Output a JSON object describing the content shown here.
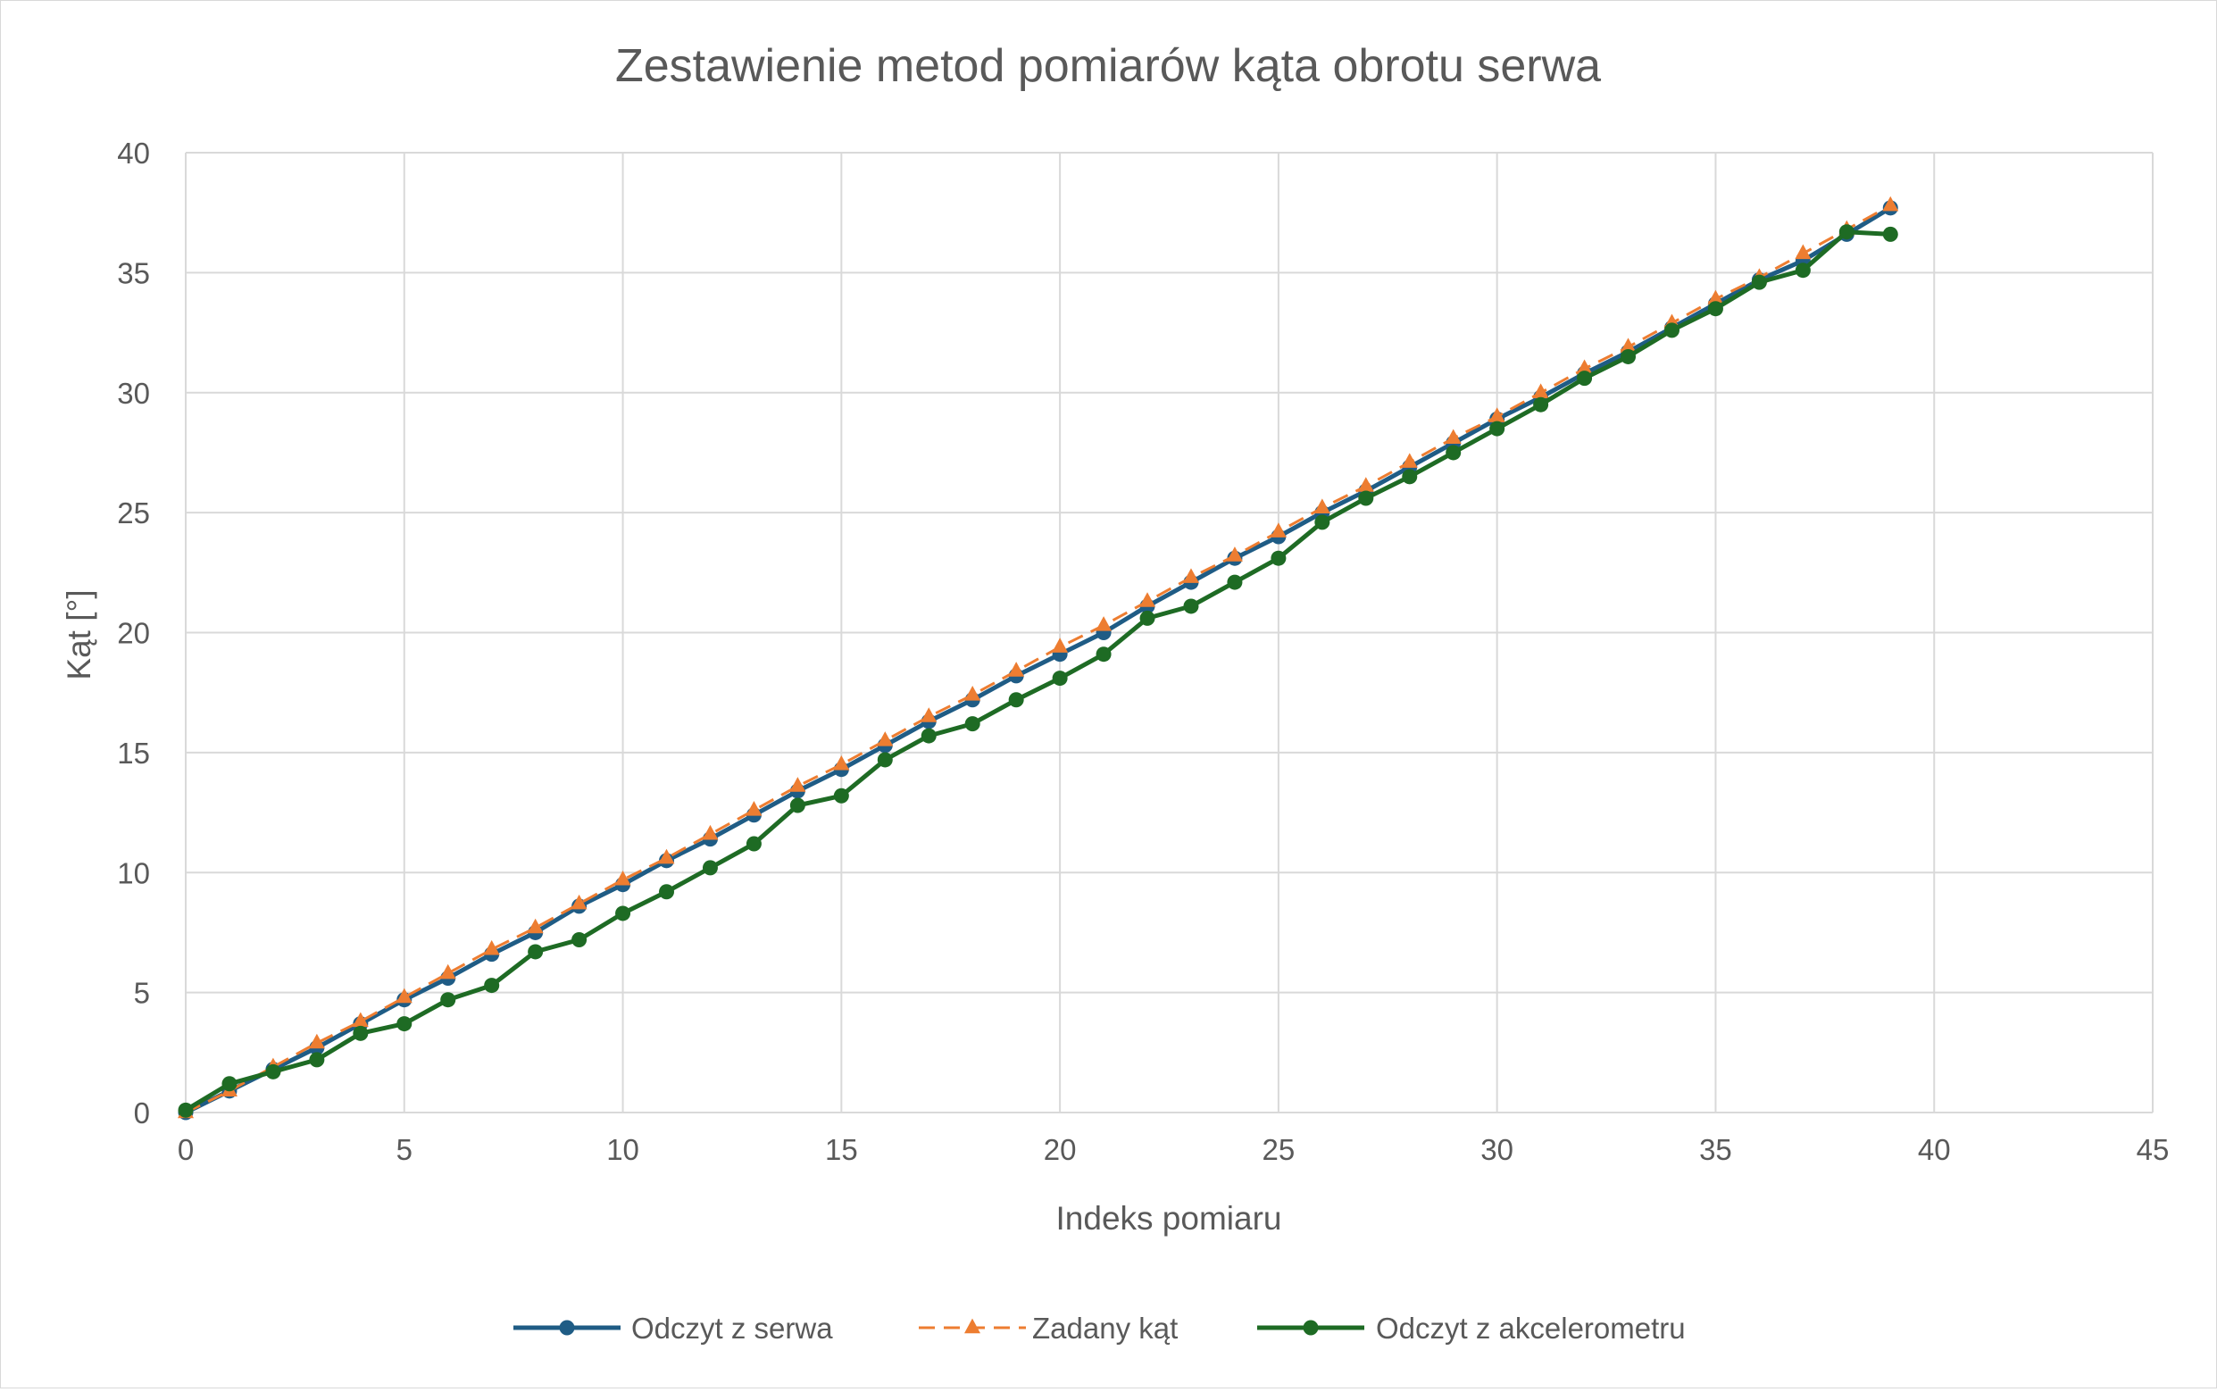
{
  "chart_data": {
    "type": "line",
    "title": "Zestawienie metod pomiarów kąta obrotu serwa",
    "xlabel": "Indeks pomiaru",
    "ylabel": "Kąt [°]",
    "xlim": [
      0,
      45
    ],
    "ylim": [
      0,
      40
    ],
    "xticks": [
      0,
      5,
      10,
      15,
      20,
      25,
      30,
      35,
      40,
      45
    ],
    "yticks": [
      0,
      5,
      10,
      15,
      20,
      25,
      30,
      35,
      40
    ],
    "grid": true,
    "legend_position": "bottom",
    "series": [
      {
        "name": "Odczyt z serwa",
        "color": "#1f5c85",
        "marker": "circle",
        "dash": "solid",
        "x": [
          0,
          1,
          2,
          3,
          4,
          5,
          6,
          7,
          8,
          9,
          10,
          11,
          12,
          13,
          14,
          15,
          16,
          17,
          18,
          19,
          20,
          21,
          22,
          23,
          24,
          25,
          26,
          27,
          28,
          29,
          30,
          31,
          32,
          33,
          34,
          35,
          36,
          37,
          38,
          39
        ],
        "y": [
          0,
          0.9,
          1.8,
          2.7,
          3.7,
          4.7,
          5.6,
          6.6,
          7.5,
          8.6,
          9.5,
          10.5,
          11.4,
          12.4,
          13.4,
          14.3,
          15.3,
          16.3,
          17.2,
          18.2,
          19.1,
          20.0,
          21.1,
          22.1,
          23.1,
          24.0,
          25.0,
          25.9,
          26.9,
          27.9,
          28.9,
          29.8,
          30.8,
          31.7,
          32.7,
          33.7,
          34.7,
          35.5,
          36.6,
          37.7
        ]
      },
      {
        "name": "Zadany kąt",
        "color": "#ed7d31",
        "marker": "triangle",
        "dash": "dashed",
        "x": [
          0,
          1,
          2,
          3,
          4,
          5,
          6,
          7,
          8,
          9,
          10,
          11,
          12,
          13,
          14,
          15,
          16,
          17,
          18,
          19,
          20,
          21,
          22,
          23,
          24,
          25,
          26,
          27,
          28,
          29,
          30,
          31,
          32,
          33,
          34,
          35,
          36,
          37,
          38,
          39
        ],
        "y": [
          0,
          0.9,
          1.9,
          2.9,
          3.8,
          4.8,
          5.8,
          6.8,
          7.7,
          8.7,
          9.7,
          10.6,
          11.6,
          12.6,
          13.6,
          14.5,
          15.5,
          16.5,
          17.4,
          18.4,
          19.4,
          20.3,
          21.3,
          22.3,
          23.2,
          24.2,
          25.2,
          26.1,
          27.1,
          28.1,
          29.0,
          30.0,
          31.0,
          31.9,
          32.9,
          33.9,
          34.8,
          35.8,
          36.8,
          37.8
        ]
      },
      {
        "name": "Odczyt z akcelerometru",
        "color": "#1e6b24",
        "marker": "circle",
        "dash": "solid",
        "x": [
          0,
          1,
          2,
          3,
          4,
          5,
          6,
          7,
          8,
          9,
          10,
          11,
          12,
          13,
          14,
          15,
          16,
          17,
          18,
          19,
          20,
          21,
          22,
          23,
          24,
          25,
          26,
          27,
          28,
          29,
          30,
          31,
          32,
          33,
          34,
          35,
          36,
          37,
          38,
          39
        ],
        "y": [
          0.1,
          1.2,
          1.7,
          2.2,
          3.3,
          3.7,
          4.7,
          5.3,
          6.7,
          7.2,
          8.3,
          9.2,
          10.2,
          11.2,
          12.8,
          13.2,
          14.7,
          15.7,
          16.2,
          17.2,
          18.1,
          19.1,
          20.6,
          21.1,
          22.1,
          23.1,
          24.6,
          25.6,
          26.5,
          27.5,
          28.5,
          29.5,
          30.6,
          31.5,
          32.6,
          33.5,
          34.6,
          35.1,
          36.7,
          36.6
        ]
      }
    ]
  }
}
